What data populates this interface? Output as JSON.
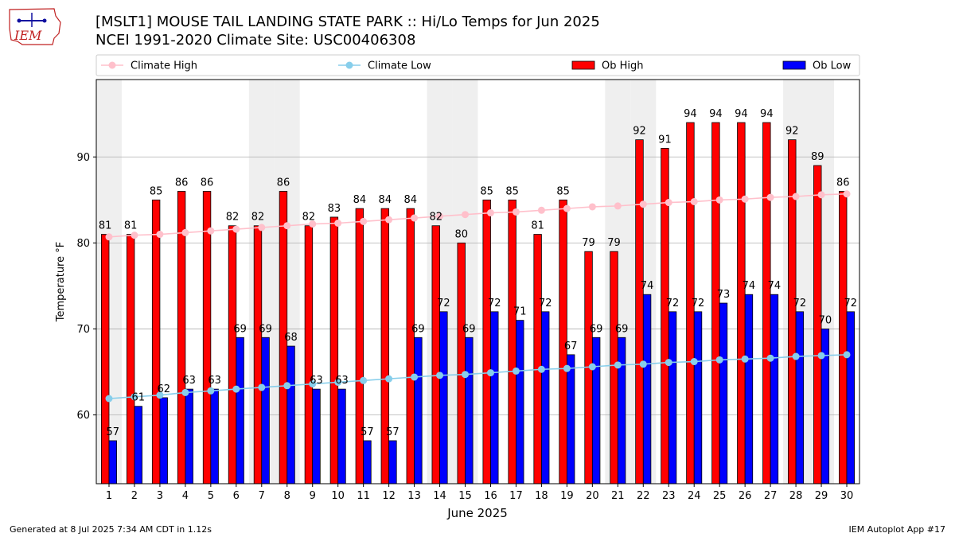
{
  "header": {
    "logo_text": "IEM",
    "title_line1": "[MSLT1] MOUSE TAIL LANDING STATE PARK :: Hi/Lo Temps for Jun 2025",
    "title_line2": "NCEI 1991-2020 Climate Site: USC00406308"
  },
  "footer": {
    "generated": "Generated at 8 Jul 2025 7:34 AM CDT in 1.12s",
    "app": "IEM Autoplot App #17"
  },
  "chart_data": {
    "type": "bar",
    "xlabel": "June 2025",
    "ylabel": "Temperature °F",
    "ylim": [
      52,
      99
    ],
    "yticks": [
      60,
      70,
      80,
      90
    ],
    "grid": true,
    "legend_placement": "top",
    "categories": [
      "1",
      "2",
      "3",
      "4",
      "5",
      "6",
      "7",
      "8",
      "9",
      "10",
      "11",
      "12",
      "13",
      "14",
      "15",
      "16",
      "17",
      "18",
      "19",
      "20",
      "21",
      "22",
      "23",
      "24",
      "25",
      "26",
      "27",
      "28",
      "29",
      "30"
    ],
    "weekend_shading_days": [
      1,
      7,
      8,
      14,
      15,
      21,
      22,
      28,
      29
    ],
    "series": [
      {
        "name": "Climate High",
        "kind": "line",
        "color": "#ffc0cb",
        "values": [
          80.7,
          80.9,
          81.0,
          81.2,
          81.4,
          81.6,
          81.8,
          82.0,
          82.2,
          82.3,
          82.5,
          82.7,
          82.9,
          83.1,
          83.3,
          83.5,
          83.6,
          83.8,
          84.0,
          84.2,
          84.3,
          84.5,
          84.7,
          84.8,
          85.0,
          85.1,
          85.3,
          85.4,
          85.6,
          85.7
        ]
      },
      {
        "name": "Climate Low",
        "kind": "line",
        "color": "#87ceeb",
        "values": [
          61.9,
          62.1,
          62.3,
          62.6,
          62.8,
          63.0,
          63.2,
          63.4,
          63.6,
          63.8,
          64.0,
          64.2,
          64.4,
          64.6,
          64.7,
          64.9,
          65.1,
          65.3,
          65.4,
          65.6,
          65.8,
          65.9,
          66.1,
          66.2,
          66.4,
          66.5,
          66.6,
          66.8,
          66.9,
          67.0
        ]
      },
      {
        "name": "Ob High",
        "kind": "bar",
        "color": "#ff0000",
        "values": [
          81,
          81,
          85,
          86,
          86,
          82,
          82,
          86,
          82,
          83,
          84,
          84,
          84,
          82,
          80,
          85,
          85,
          81,
          85,
          79,
          79,
          92,
          91,
          94,
          94,
          94,
          94,
          92,
          89,
          86
        ]
      },
      {
        "name": "Ob Low",
        "kind": "bar",
        "color": "#0000ff",
        "values": [
          57,
          61,
          62,
          63,
          63,
          69,
          69,
          68,
          63,
          63,
          57,
          57,
          69,
          72,
          69,
          72,
          71,
          72,
          67,
          69,
          69,
          74,
          72,
          72,
          73,
          74,
          74,
          72,
          70,
          72
        ]
      }
    ]
  }
}
